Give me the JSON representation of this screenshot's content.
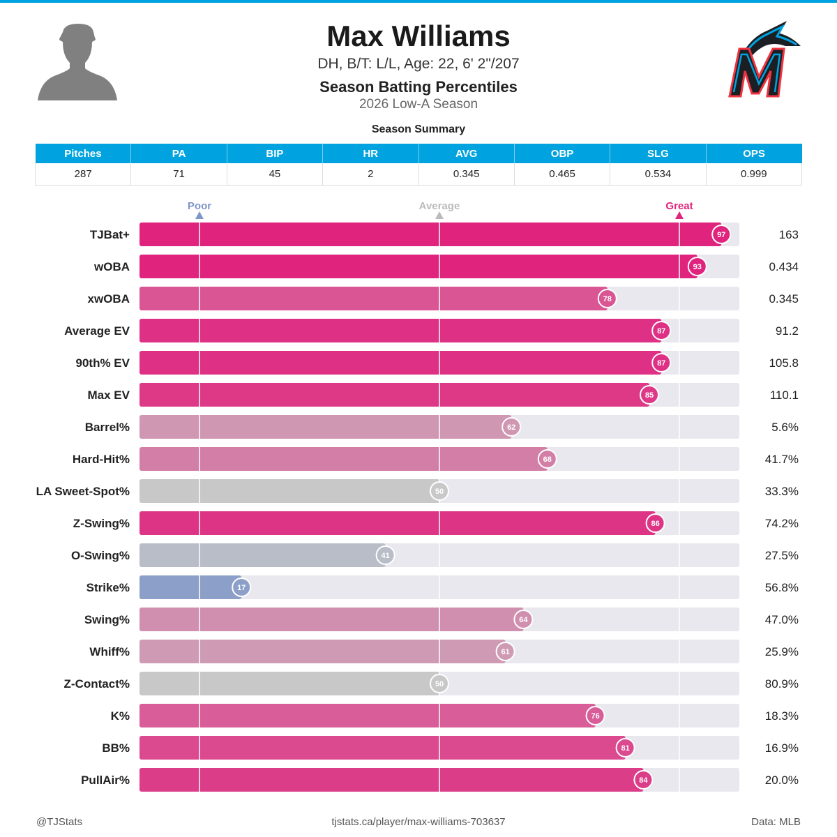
{
  "header": {
    "name": "Max Williams",
    "bio": "DH, B/T: L/L, Age: 22, 6' 2\"/207",
    "subtitle": "Season Batting Percentiles",
    "season": "2026 Low-A Season",
    "summary_title": "Season Summary"
  },
  "summary": {
    "columns": [
      "Pitches",
      "PA",
      "BIP",
      "HR",
      "AVG",
      "OBP",
      "SLG",
      "OPS"
    ],
    "values": [
      "287",
      "71",
      "45",
      "2",
      "0.345",
      "0.465",
      "0.534",
      "0.999"
    ]
  },
  "colors": {
    "accent": "#00a3e0",
    "great": "#e0247e",
    "average": "#c8c8c8",
    "poor": "#7f96c8",
    "track": "#e8e8ee"
  },
  "chart_data": {
    "type": "bar",
    "orientation": "horizontal",
    "xlim": [
      0,
      100
    ],
    "markers": [
      {
        "label": "Poor",
        "value": 10
      },
      {
        "label": "Average",
        "value": 50
      },
      {
        "label": "Great",
        "value": 90
      }
    ],
    "rows": [
      {
        "label": "TJBat+",
        "percentile": 97,
        "value": "163"
      },
      {
        "label": "wOBA",
        "percentile": 93,
        "value": "0.434"
      },
      {
        "label": "xwOBA",
        "percentile": 78,
        "value": "0.345"
      },
      {
        "label": "Average EV",
        "percentile": 87,
        "value": "91.2"
      },
      {
        "label": "90th% EV",
        "percentile": 87,
        "value": "105.8"
      },
      {
        "label": "Max EV",
        "percentile": 85,
        "value": "110.1"
      },
      {
        "label": "Barrel%",
        "percentile": 62,
        "value": "5.6%"
      },
      {
        "label": "Hard-Hit%",
        "percentile": 68,
        "value": "41.7%"
      },
      {
        "label": "LA Sweet-Spot%",
        "percentile": 50,
        "value": "33.3%"
      },
      {
        "label": "Z-Swing%",
        "percentile": 86,
        "value": "74.2%"
      },
      {
        "label": "O-Swing%",
        "percentile": 41,
        "value": "27.5%"
      },
      {
        "label": "Strike%",
        "percentile": 17,
        "value": "56.8%"
      },
      {
        "label": "Swing%",
        "percentile": 64,
        "value": "47.0%"
      },
      {
        "label": "Whiff%",
        "percentile": 61,
        "value": "25.9%"
      },
      {
        "label": "Z-Contact%",
        "percentile": 50,
        "value": "80.9%"
      },
      {
        "label": "K%",
        "percentile": 76,
        "value": "18.3%"
      },
      {
        "label": "BB%",
        "percentile": 81,
        "value": "16.9%"
      },
      {
        "label": "PullAir%",
        "percentile": 84,
        "value": "20.0%"
      }
    ]
  },
  "footer": {
    "handle": "@TJStats",
    "url": "tjstats.ca/player/max-williams-703637",
    "source": "Data: MLB"
  }
}
